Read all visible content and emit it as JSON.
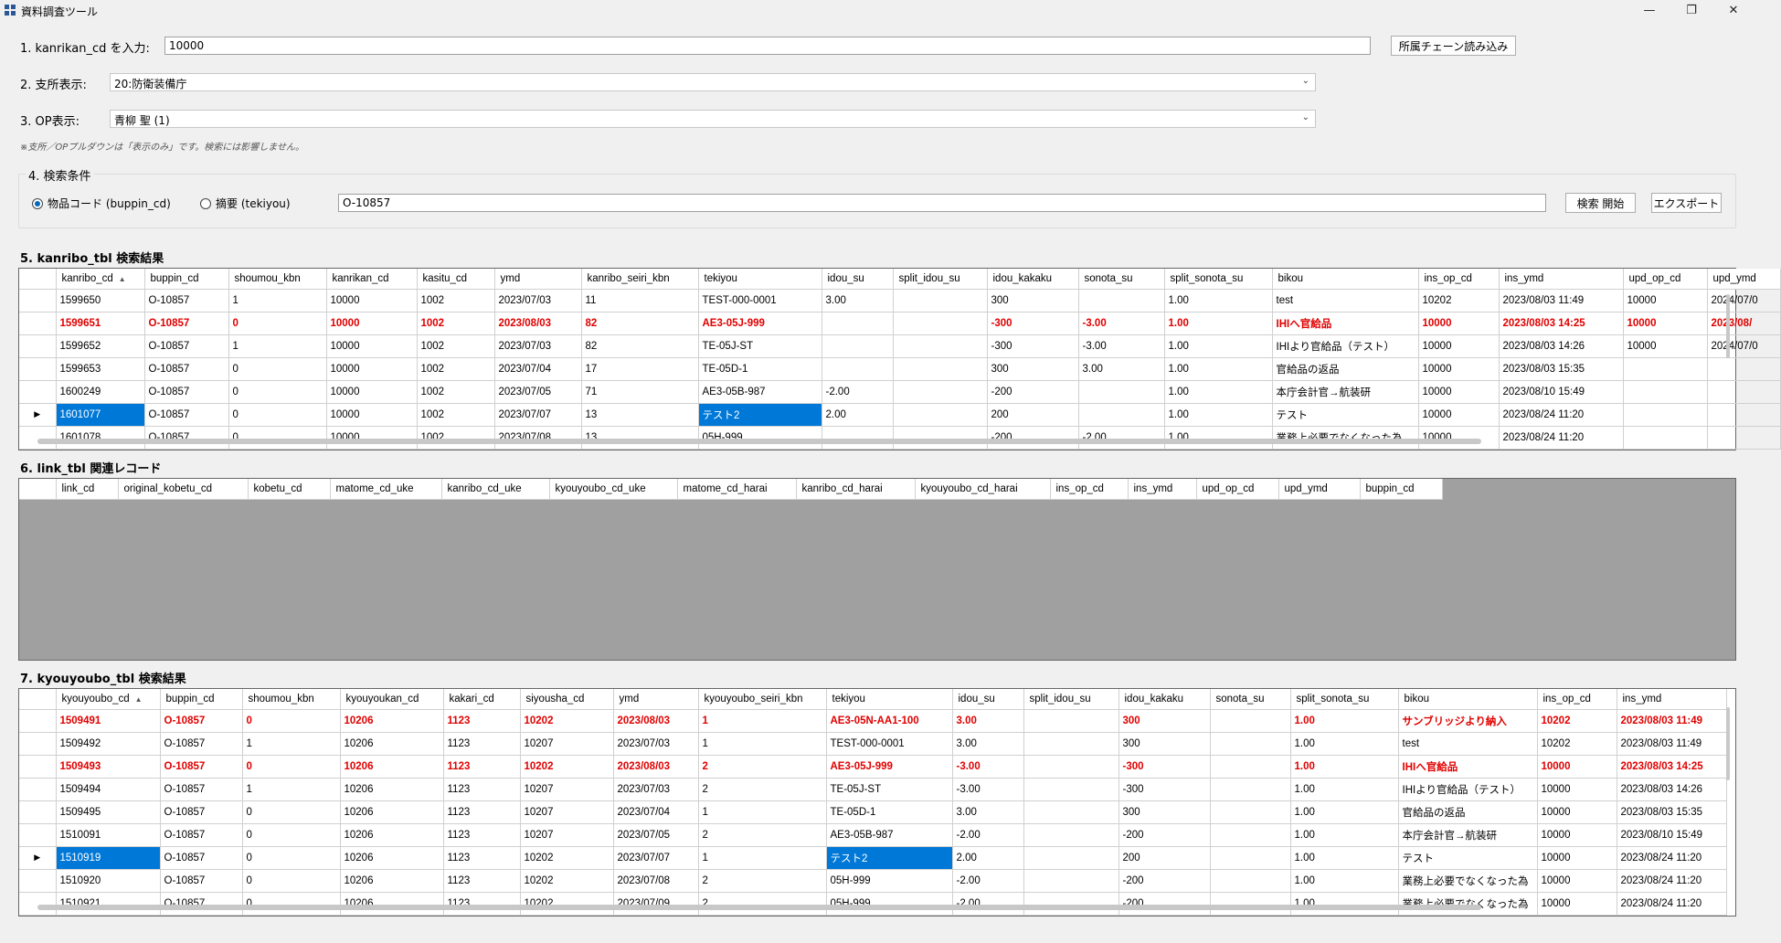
{
  "window": {
    "title": "資料調査ツール",
    "minimize": "—",
    "maximize": "❐",
    "close": "✕"
  },
  "step1": {
    "label": "1. kanrikan_cd を入力:",
    "value": "10000",
    "button": "所属チェーン読み込み"
  },
  "step2": {
    "label": "2. 支所表示:",
    "value": "20:防衛装備庁"
  },
  "step3": {
    "label": "3. OP表示:",
    "value": "青柳 聖 (1)"
  },
  "note": "※支所／OPプルダウンは「表示のみ」です。検索には影響しません。",
  "step4": {
    "label": "4. 検索条件",
    "radio1": "物品コード (buppin_cd)",
    "radio2": "摘要 (tekiyou)",
    "value": "O-10857",
    "search_button": "検索 開始",
    "export_button": "エクスポート"
  },
  "section5": {
    "label": "5. kanribo_tbl 検索結果"
  },
  "section6": {
    "label": "6. link_tbl 関連レコード"
  },
  "section7": {
    "label": "7. kyouyoubo_tbl 検索結果"
  },
  "kanribo": {
    "columns": [
      "kanribo_cd",
      "buppin_cd",
      "shoumou_kbn",
      "kanrikan_cd",
      "kasitu_cd",
      "ymd",
      "kanribo_seiri_kbn",
      "tekiyou",
      "idou_su",
      "split_idou_su",
      "idou_kakaku",
      "sonota_su",
      "split_sonota_su",
      "bikou",
      "ins_op_cd",
      "ins_ymd",
      "upd_op_cd",
      "upd_ymd"
    ],
    "sort_indicator": "▲",
    "rows": [
      [
        "1599650",
        "O-10857",
        "1",
        "10000",
        "1002",
        "2023/07/03",
        "11",
        "TEST-000-0001",
        "3.00",
        "",
        "300",
        "",
        "1.00",
        "test",
        "10202",
        "2023/08/03 11:49",
        "10000",
        "2024/07/0"
      ],
      [
        "1599651",
        "O-10857",
        "0",
        "10000",
        "1002",
        "2023/08/03",
        "82",
        "AE3-05J-999",
        "",
        "",
        "-300",
        "-3.00",
        "1.00",
        "IHIへ官給品",
        "10000",
        "2023/08/03 14:25",
        "10000",
        "2023/08/"
      ],
      [
        "1599652",
        "O-10857",
        "1",
        "10000",
        "1002",
        "2023/07/03",
        "82",
        "TE-05J-ST",
        "",
        "",
        "-300",
        "-3.00",
        "1.00",
        "IHIより官給品（テスト）",
        "10000",
        "2023/08/03 14:26",
        "10000",
        "2024/07/0"
      ],
      [
        "1599653",
        "O-10857",
        "0",
        "10000",
        "1002",
        "2023/07/04",
        "17",
        "TE-05D-1",
        "",
        "",
        "300",
        "3.00",
        "1.00",
        "官給品の返品",
        "10000",
        "2023/08/03 15:35",
        "",
        ""
      ],
      [
        "1600249",
        "O-10857",
        "0",
        "10000",
        "1002",
        "2023/07/05",
        "71",
        "AE3-05B-987",
        "-2.00",
        "",
        "-200",
        "",
        "1.00",
        "本庁会計官→航装研",
        "10000",
        "2023/08/10 15:49",
        "",
        ""
      ],
      [
        "1601077",
        "O-10857",
        "0",
        "10000",
        "1002",
        "2023/07/07",
        "13",
        "テスト2",
        "2.00",
        "",
        "200",
        "",
        "1.00",
        "テスト",
        "10000",
        "2023/08/24 11:20",
        "",
        ""
      ],
      [
        "1601078",
        "O-10857",
        "0",
        "10000",
        "1002",
        "2023/07/08",
        "13",
        "05H-999",
        "",
        "",
        "-200",
        "-2.00",
        "1.00",
        "業務上必要でなくなった為",
        "10000",
        "2023/08/24 11:20",
        "",
        ""
      ]
    ]
  },
  "link": {
    "columns": [
      "link_cd",
      "original_kobetu_cd",
      "kobetu_cd",
      "matome_cd_uke",
      "kanribo_cd_uke",
      "kyouyoubo_cd_uke",
      "matome_cd_harai",
      "kanribo_cd_harai",
      "kyouyoubo_cd_harai",
      "ins_op_cd",
      "ins_ymd",
      "upd_op_cd",
      "upd_ymd",
      "buppin_cd"
    ]
  },
  "kyouyoubo": {
    "columns": [
      "kyouyoubo_cd",
      "buppin_cd",
      "shoumou_kbn",
      "kyouyoukan_cd",
      "kakari_cd",
      "siyousha_cd",
      "ymd",
      "kyouyoubo_seiri_kbn",
      "tekiyou",
      "idou_su",
      "split_idou_su",
      "idou_kakaku",
      "sonota_su",
      "split_sonota_su",
      "bikou",
      "ins_op_cd",
      "ins_ymd"
    ],
    "sort_indicator": "▲",
    "rows": [
      [
        "1509491",
        "O-10857",
        "0",
        "10206",
        "1123",
        "10202",
        "2023/08/03",
        "1",
        "AE3-05N-AA1-100",
        "3.00",
        "",
        "300",
        "",
        "1.00",
        "サンブリッジより納入",
        "10202",
        "2023/08/03 11:49"
      ],
      [
        "1509492",
        "O-10857",
        "1",
        "10206",
        "1123",
        "10207",
        "2023/07/03",
        "1",
        "TEST-000-0001",
        "3.00",
        "",
        "300",
        "",
        "1.00",
        "test",
        "10202",
        "2023/08/03 11:49"
      ],
      [
        "1509493",
        "O-10857",
        "0",
        "10206",
        "1123",
        "10202",
        "2023/08/03",
        "2",
        "AE3-05J-999",
        "-3.00",
        "",
        "-300",
        "",
        "1.00",
        "IHIへ官給品",
        "10000",
        "2023/08/03 14:25"
      ],
      [
        "1509494",
        "O-10857",
        "1",
        "10206",
        "1123",
        "10207",
        "2023/07/03",
        "2",
        "TE-05J-ST",
        "-3.00",
        "",
        "-300",
        "",
        "1.00",
        "IHIより官給品（テスト）",
        "10000",
        "2023/08/03 14:26"
      ],
      [
        "1509495",
        "O-10857",
        "0",
        "10206",
        "1123",
        "10207",
        "2023/07/04",
        "1",
        "TE-05D-1",
        "3.00",
        "",
        "300",
        "",
        "1.00",
        "官給品の返品",
        "10000",
        "2023/08/03 15:35"
      ],
      [
        "1510091",
        "O-10857",
        "0",
        "10206",
        "1123",
        "10207",
        "2023/07/05",
        "2",
        "AE3-05B-987",
        "-2.00",
        "",
        "-200",
        "",
        "1.00",
        "本庁会計官→航装研",
        "10000",
        "2023/08/10 15:49"
      ],
      [
        "1510919",
        "O-10857",
        "0",
        "10206",
        "1123",
        "10202",
        "2023/07/07",
        "1",
        "テスト2",
        "2.00",
        "",
        "200",
        "",
        "1.00",
        "テスト",
        "10000",
        "2023/08/24 11:20"
      ],
      [
        "1510920",
        "O-10857",
        "0",
        "10206",
        "1123",
        "10202",
        "2023/07/08",
        "2",
        "05H-999",
        "-2.00",
        "",
        "-200",
        "",
        "1.00",
        "業務上必要でなくなった為",
        "10000",
        "2023/08/24 11:20"
      ],
      [
        "1510921",
        "O-10857",
        "0",
        "10206",
        "1123",
        "10202",
        "2023/07/09",
        "2",
        "05H-999",
        "-2.00",
        "",
        "-200",
        "",
        "1.00",
        "業務上必要でなくなった為",
        "10000",
        "2023/08/24 11:20"
      ]
    ]
  },
  "colors": {
    "highlight_row_text": "#e00000",
    "selection": "#0078d7",
    "empty_grid": "#a0a0a0"
  }
}
